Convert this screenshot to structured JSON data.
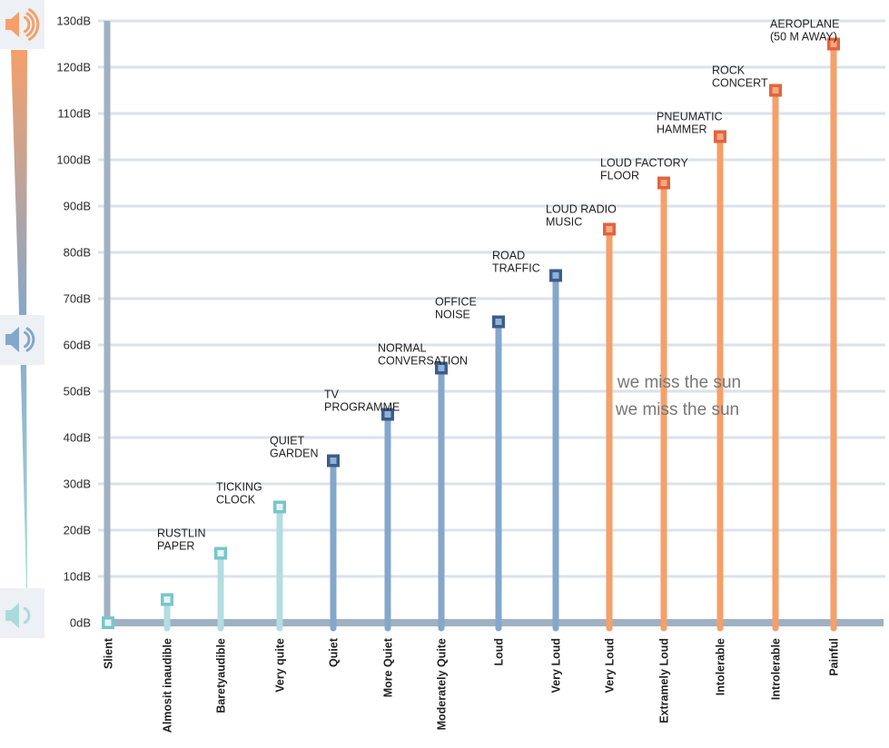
{
  "colors": {
    "grid": "#dbe2ea",
    "axis": "#9fb1c2",
    "low_stem": "#b3dde0",
    "low_marker": "#78c6c9",
    "mid_stem": "#84a7cb",
    "mid_marker": "#3c5d8b",
    "high_stem": "#f5a06a",
    "high_marker": "#e0653f",
    "icon_high": "#f5a06a",
    "icon_mid": "#84a7cb",
    "icon_low": "#a9dbdc",
    "icon_bg": "#edf0f4"
  },
  "icons": {
    "top": "speaker-loud-icon",
    "middle": "speaker-medium-icon",
    "bottom": "speaker-quiet-icon"
  },
  "overlay_lines": [
    "we miss the sun",
    "we miss the sun"
  ],
  "chart_data": {
    "type": "bar",
    "title": "",
    "xlabel": "",
    "ylabel": "",
    "ylim": [
      0,
      130
    ],
    "y_ticks": [
      {
        "value": 0,
        "label": "0dB"
      },
      {
        "value": 10,
        "label": "10dB"
      },
      {
        "value": 20,
        "label": "20dB"
      },
      {
        "value": 30,
        "label": "30dB"
      },
      {
        "value": 40,
        "label": "40dB"
      },
      {
        "value": 50,
        "label": "50dB"
      },
      {
        "value": 60,
        "label": "60dB"
      },
      {
        "value": 70,
        "label": "70dB"
      },
      {
        "value": 80,
        "label": "80dB"
      },
      {
        "value": 90,
        "label": "90dB"
      },
      {
        "value": 100,
        "label": "100dB"
      },
      {
        "value": 110,
        "label": "110dB"
      },
      {
        "value": 120,
        "label": "120dB"
      },
      {
        "value": 130,
        "label": "130dB"
      }
    ],
    "categories": [
      "Slient",
      "Almosit inaudible",
      "Baretyaudible",
      "Very quite",
      "Quiet",
      "More Quiet",
      "Moderately Quite",
      "Loud",
      "Very Loud",
      "Very Loud",
      "Extramely Loud",
      "Intolerable",
      "Introlerable",
      "Painful"
    ],
    "values": [
      0,
      5,
      15,
      25,
      35,
      45,
      55,
      65,
      75,
      85,
      95,
      105,
      115,
      125
    ],
    "groups": [
      "low",
      "low",
      "low",
      "low",
      "mid",
      "mid",
      "mid",
      "mid",
      "mid",
      "high",
      "high",
      "high",
      "high",
      "high"
    ],
    "annotations": [
      [],
      [],
      [
        "RUSTLIN",
        "PAPER"
      ],
      [
        "TICKING",
        "CLOCK"
      ],
      [
        "QUIET",
        "GARDEN"
      ],
      [
        "TV",
        "PROGRAMME"
      ],
      [
        "NORMAL",
        "CONVERSATION"
      ],
      [
        "OFFICE",
        "NOISE"
      ],
      [
        "ROAD",
        "TRAFFIC"
      ],
      [
        "LOUD RADIO",
        "MUSIC"
      ],
      [
        "LOUD FACTORY",
        "FLOOR"
      ],
      [
        "PNEUMATIC",
        "HAMMER"
      ],
      [
        "ROCK",
        "CONCERT"
      ],
      [
        "AEROPLANE",
        "(50 M AWAY)"
      ]
    ]
  }
}
